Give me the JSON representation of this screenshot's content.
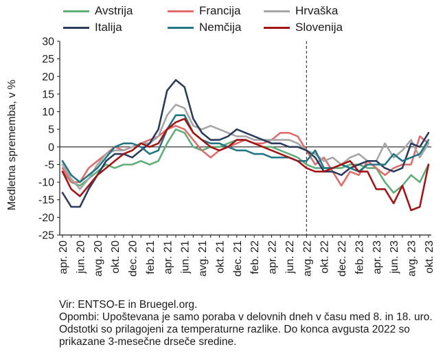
{
  "chart_data": {
    "type": "line",
    "ylabel": "Medletna sprememba, v %",
    "xlabel": "",
    "ylim": [
      -25,
      30
    ],
    "yticks": [
      30,
      25,
      20,
      15,
      10,
      5,
      0,
      -5,
      -10,
      -15,
      -20,
      -25
    ],
    "grid": false,
    "legend_position": "top",
    "x": [
      "apr. 20",
      "maj 20",
      "jun. 20",
      "jul. 20",
      "avg. 20",
      "sep. 20",
      "okt. 20",
      "nov. 20",
      "dec. 20",
      "jan. 21",
      "feb. 21",
      "mar. 21",
      "apr. 21",
      "maj 21",
      "jun. 21",
      "jul. 21",
      "avg. 21",
      "sep. 21",
      "okt. 21",
      "nov. 21",
      "dec. 21",
      "jan. 22",
      "feb. 22",
      "mar. 22",
      "apr. 22",
      "maj 22",
      "jun. 22",
      "jul. 22",
      "avg. 22",
      "sep. 22",
      "okt. 22",
      "nov. 22",
      "dec. 22",
      "jan. 23",
      "feb. 23",
      "mar. 23",
      "apr. 23",
      "maj 23",
      "jun. 23",
      "jul. 23",
      "avg. 23",
      "sep. 23",
      "okt. 23"
    ],
    "xtick_labels": [
      "apr. 20",
      "jun. 20",
      "avg. 20",
      "okt. 20",
      "dec. 20",
      "feb. 21",
      "apr. 21",
      "jun. 21",
      "avg. 21",
      "okt. 21",
      "dec. 21",
      "feb. 22",
      "apr. 22",
      "jun. 22",
      "avg. 22",
      "okt. 22",
      "dec. 22",
      "feb. 23",
      "apr. 23",
      "jun. 23",
      "avg. 23",
      "okt. 23"
    ],
    "vline_at": "avg. 22",
    "series": [
      {
        "name": "Avstrija",
        "color": "#5fae78",
        "values": [
          -7,
          -10,
          -11,
          -9,
          -7,
          -5,
          -6,
          -5,
          -5,
          -4,
          -5,
          -4,
          1,
          5,
          4,
          0,
          -1,
          0,
          0,
          1,
          2,
          2,
          1,
          0,
          0,
          -1,
          -2,
          -3,
          -5,
          -6,
          -6,
          -6,
          -6,
          -5,
          -5,
          -6,
          -6,
          -10,
          -13,
          -11,
          -8,
          -10,
          -5
        ]
      },
      {
        "name": "Francija",
        "color": "#e06c6c",
        "values": [
          -6,
          -10,
          -10,
          -6,
          -4,
          -2,
          0,
          -1,
          0,
          1,
          2,
          3,
          5,
          6,
          5,
          2,
          -1,
          -3,
          -1,
          0,
          1,
          2,
          1,
          1,
          2,
          4,
          4,
          3,
          -1,
          -5,
          -3,
          -7,
          -11,
          -7,
          -8,
          -4,
          -6,
          -8,
          -6,
          -5,
          -5,
          3,
          1
        ]
      },
      {
        "name": "Hrvaška",
        "color": "#a5a5a5",
        "values": [
          -5,
          -9,
          -12,
          -9,
          -5,
          -2,
          -1,
          -1,
          0,
          1,
          1,
          3,
          9,
          12,
          11,
          6,
          5,
          6,
          5,
          4,
          3,
          3,
          2,
          2,
          2,
          2,
          2,
          1,
          -1,
          -2,
          -4,
          -3,
          -5,
          -3,
          -2,
          -4,
          -4,
          1,
          -3,
          -1,
          2,
          -3,
          1
        ]
      },
      {
        "name": "Italija",
        "color": "#2b3b5c",
        "values": [
          -13,
          -17,
          -17,
          -12,
          -8,
          -4,
          -2,
          -2,
          -3,
          -1,
          1,
          5,
          16,
          19,
          17,
          8,
          4,
          2,
          2,
          3,
          5,
          4,
          3,
          2,
          1,
          1,
          0,
          0,
          -1,
          -3,
          -7,
          -7,
          -8,
          -6,
          -5,
          -4,
          -4,
          -6,
          -7,
          -6,
          1,
          0,
          4
        ]
      },
      {
        "name": "Nemčija",
        "color": "#217683",
        "values": [
          -4,
          -8,
          -10,
          -8,
          -6,
          -3,
          0,
          1,
          1,
          0,
          -2,
          -1,
          5,
          9,
          9,
          4,
          2,
          1,
          1,
          0,
          -1,
          -1,
          -2,
          -2,
          -3,
          -3,
          -3,
          -4,
          -4,
          -1,
          -6,
          -6,
          -5,
          -6,
          -7,
          -5,
          -5,
          -5,
          -2,
          -4,
          -3,
          -2,
          2
        ]
      },
      {
        "name": "Slovenija",
        "color": "#a31417",
        "values": [
          -7,
          -12,
          -14,
          -11,
          -8,
          -6,
          -4,
          -2,
          -1,
          1,
          0,
          1,
          5,
          7,
          8,
          4,
          2,
          0,
          -1,
          0,
          2,
          2,
          1,
          0,
          -1,
          -2,
          -3,
          -4,
          -6,
          -7,
          -7,
          -6,
          -5,
          -4,
          -7,
          -7,
          -12,
          -12,
          -16,
          -11,
          -18,
          -17,
          -5
        ]
      }
    ]
  },
  "notes": [
    "Vir: ENTSO-E in Bruegel.org.",
    "Opombi: Upoštevana je samo poraba v delovnih dneh v času med 8. in 18. uro. Odstotki so prilagojeni za temperaturne razlike. Do konca avgusta 2022 so prikazane 3-mesečne drseče sredine."
  ]
}
